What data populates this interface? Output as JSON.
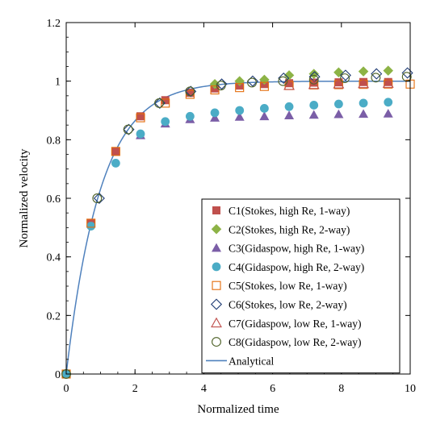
{
  "chart_data": {
    "type": "scatter",
    "title": "",
    "xlabel": "Normalized time",
    "ylabel": "Normalized velocity",
    "xlim": [
      0,
      10
    ],
    "ylim": [
      0,
      1.2
    ],
    "xticks": [
      0,
      2,
      4,
      6,
      8,
      10
    ],
    "yticks": [
      0,
      0.2,
      0.4,
      0.6,
      0.8,
      1,
      1.2
    ],
    "xtick_labels": [
      "0",
      "2",
      "4",
      "6",
      "8",
      "10"
    ],
    "ytick_labels": [
      "0",
      "0.2",
      "0.4",
      "0.6",
      "0.8",
      "1",
      "1.2"
    ],
    "grid": false,
    "legend_position": "bottom-right",
    "series": [
      {
        "name": "C1(Stokes, high Re, 1-way)",
        "marker": "square-filled",
        "color": "#c0504d",
        "x": [
          0,
          0.72,
          1.44,
          2.16,
          2.88,
          3.6,
          4.32,
          5.04,
          5.76,
          6.48,
          7.2,
          7.92,
          8.64,
          9.36
        ],
        "y": [
          0,
          0.515,
          0.76,
          0.88,
          0.935,
          0.96,
          0.975,
          0.985,
          0.99,
          0.993,
          0.995,
          0.996,
          0.997,
          0.997
        ]
      },
      {
        "name": "C2(Stokes, high Re, 2-way)",
        "marker": "diamond-filled",
        "color": "#8db346",
        "x": [
          4.32,
          5.04,
          5.76,
          6.48,
          7.2,
          7.92,
          8.64,
          9.36
        ],
        "y": [
          0.99,
          1.0,
          1.005,
          1.02,
          1.025,
          1.03,
          1.033,
          1.036
        ]
      },
      {
        "name": "C3(Gidaspow, high Re, 1-way)",
        "marker": "triangle-filled",
        "color": "#7b5ea7",
        "x": [
          2.16,
          2.88,
          3.6,
          4.32,
          5.04,
          5.76,
          6.48,
          7.2,
          7.92,
          8.64,
          9.36
        ],
        "y": [
          0.815,
          0.855,
          0.87,
          0.875,
          0.878,
          0.88,
          0.883,
          0.885,
          0.887,
          0.888,
          0.889
        ]
      },
      {
        "name": "C4(Gidaspow, high Re, 2-way)",
        "marker": "circle-filled",
        "color": "#4bacc6",
        "x": [
          0,
          0.72,
          1.44,
          2.16,
          2.88,
          3.6,
          4.32,
          5.04,
          5.76,
          6.48,
          7.2,
          7.92,
          8.64,
          9.36
        ],
        "y": [
          0,
          0.505,
          0.72,
          0.82,
          0.862,
          0.88,
          0.892,
          0.9,
          0.907,
          0.913,
          0.918,
          0.922,
          0.925,
          0.928
        ]
      },
      {
        "name": "C5(Stokes, low Re, 1-way)",
        "marker": "square-open",
        "color": "#e46c0a",
        "x": [
          0,
          0.72,
          1.44,
          2.16,
          2.88,
          3.6,
          4.32,
          5.04,
          5.76,
          6.48,
          7.2,
          7.92,
          8.64,
          9.36,
          10.0
        ],
        "y": [
          0,
          0.515,
          0.76,
          0.875,
          0.925,
          0.955,
          0.97,
          0.978,
          0.982,
          0.985,
          0.987,
          0.988,
          0.989,
          0.99,
          0.99
        ]
      },
      {
        "name": "C6(Stokes, low Re, 2-way)",
        "marker": "diamond-open",
        "color": "#1f3b73",
        "x": [
          0.96,
          1.82,
          2.72,
          3.62,
          4.52,
          5.42,
          6.32,
          7.22,
          8.12,
          9.02,
          9.92
        ],
        "y": [
          0.6,
          0.835,
          0.925,
          0.965,
          0.99,
          1.0,
          1.01,
          1.015,
          1.02,
          1.025,
          1.028
        ]
      },
      {
        "name": "C7(Gidaspow, low Re, 1-way)",
        "marker": "triangle-open",
        "color": "#c0504d",
        "x": [
          6.48,
          7.2,
          7.92,
          8.64,
          9.36
        ],
        "y": [
          0.985,
          0.988,
          0.99,
          0.991,
          0.992
        ]
      },
      {
        "name": "C8(Gidaspow, low Re, 2-way)",
        "marker": "circle-open",
        "color": "#4f6228",
        "x": [
          0,
          0.9,
          1.8,
          2.7,
          3.6,
          4.5,
          5.4,
          6.3,
          7.2,
          8.1,
          9.0,
          9.9
        ],
        "y": [
          0,
          0.6,
          0.835,
          0.925,
          0.965,
          0.985,
          0.995,
          1.0,
          1.005,
          1.01,
          1.012,
          1.015
        ]
      },
      {
        "name": "Analytical",
        "marker": "line",
        "color": "#4f81bd",
        "function": "1 - exp(-t)",
        "x_range": [
          0,
          10
        ]
      }
    ]
  }
}
